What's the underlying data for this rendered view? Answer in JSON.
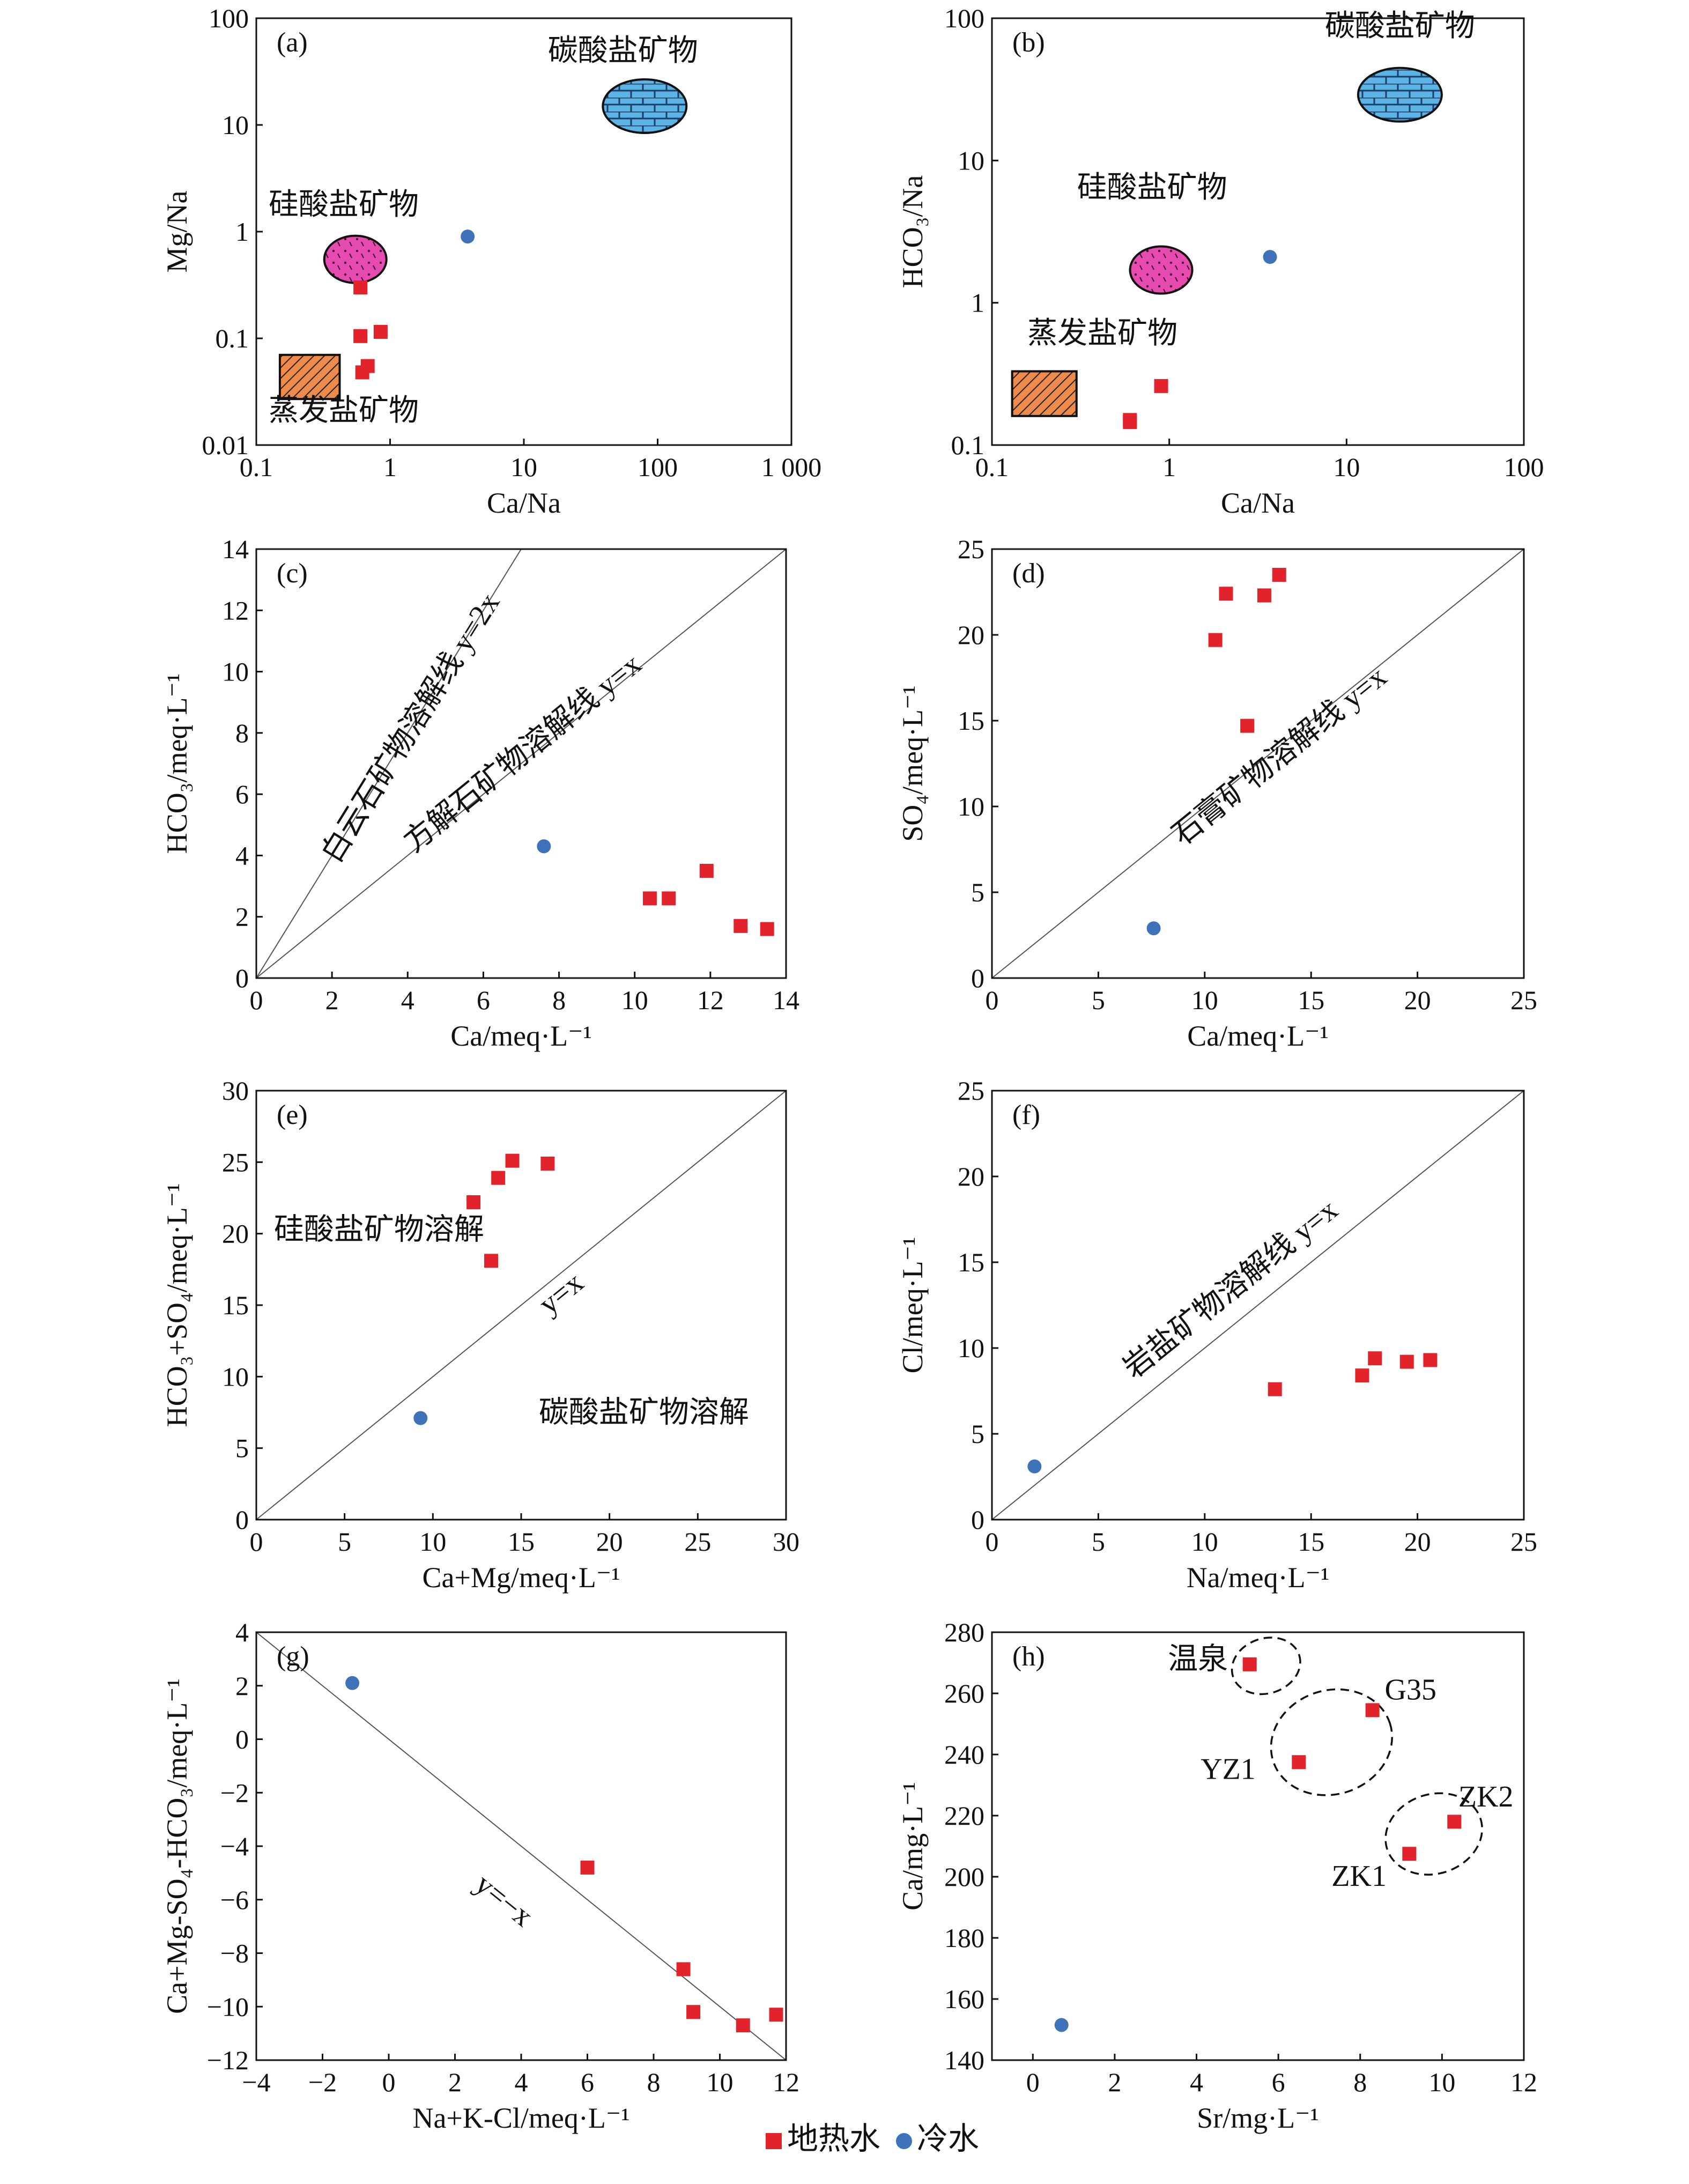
{
  "legend": {
    "items": [
      {
        "label": "地热水",
        "color": "#e3232b",
        "marker": "square"
      },
      {
        "label": "冷水",
        "color": "#3e73b9",
        "marker": "circle"
      }
    ]
  },
  "chart_data": [
    {
      "id": "a",
      "type": "scatter",
      "title": "(a)",
      "xlabel": "Ca/Na",
      "ylabel": "Mg/Na",
      "xscale": "log",
      "yscale": "log",
      "xlim": [
        0.1,
        1000
      ],
      "ylim": [
        0.01,
        100
      ],
      "xticks": [
        0.1,
        1,
        10,
        100,
        1000
      ],
      "xticklabels": [
        "0.1",
        "1",
        "10",
        "100",
        "1 000"
      ],
      "yticks": [
        0.01,
        0.1,
        1,
        10,
        100
      ],
      "yticklabels": [
        "0.01",
        "0.1",
        "1",
        "10",
        "100"
      ],
      "series": [
        {
          "name": "地热水",
          "marker": "square",
          "points": [
            [
              0.6,
              0.3
            ],
            [
              0.6,
              0.105
            ],
            [
              0.85,
              0.115
            ],
            [
              0.62,
              0.048
            ],
            [
              0.68,
              0.055
            ]
          ]
        },
        {
          "name": "冷水",
          "marker": "circle",
          "points": [
            [
              3.8,
              0.9
            ]
          ]
        }
      ],
      "regions": [
        {
          "label": "碳酸盐矿物",
          "kind": "ellipse",
          "fill": "#5bb3e6",
          "pattern": "brick",
          "center": [
            80,
            15
          ],
          "label_at": [
            55,
            40
          ]
        },
        {
          "label": "硅酸盐矿物",
          "kind": "ellipse",
          "fill": "#e84bb0",
          "pattern": "dots",
          "center": [
            0.55,
            0.55
          ],
          "label_at": [
            0.45,
            1.45
          ]
        },
        {
          "label": "蒸发盐矿物",
          "kind": "rect",
          "fill": "#ee8a4a",
          "pattern": "hatch",
          "x_range": [
            0.15,
            0.42
          ],
          "y_range": [
            0.027,
            0.07
          ],
          "label_at": [
            0.45,
            0.017
          ]
        }
      ]
    },
    {
      "id": "b",
      "type": "scatter",
      "title": "(b)",
      "xlabel": "Ca/Na",
      "ylabel": "HCO₃/Na",
      "xscale": "log",
      "yscale": "log",
      "xlim": [
        0.1,
        100
      ],
      "ylim": [
        0.1,
        100
      ],
      "xticks": [
        0.1,
        1,
        10,
        100
      ],
      "xticklabels": [
        "0.1",
        "1",
        "10",
        "100"
      ],
      "yticks": [
        0.1,
        1,
        10,
        100
      ],
      "yticklabels": [
        "0.1",
        "1",
        "10",
        "100"
      ],
      "series": [
        {
          "name": "地热水",
          "marker": "square",
          "points": [
            [
              0.6,
              0.145
            ],
            [
              0.6,
              0.15
            ],
            [
              0.9,
              0.26
            ]
          ]
        },
        {
          "name": "冷水",
          "marker": "circle",
          "points": [
            [
              3.7,
              2.1
            ]
          ]
        }
      ],
      "regions": [
        {
          "label": "碳酸盐矿物",
          "kind": "ellipse",
          "fill": "#5bb3e6",
          "pattern": "brick",
          "center": [
            20,
            29
          ],
          "label_at": [
            20,
            75
          ]
        },
        {
          "label": "硅酸盐矿物",
          "kind": "ellipse",
          "fill": "#e84bb0",
          "pattern": "dots",
          "center": [
            0.9,
            1.7
          ],
          "label_at": [
            0.8,
            5.5
          ]
        },
        {
          "label": "蒸发盐矿物",
          "kind": "rect",
          "fill": "#ee8a4a",
          "pattern": "hatch",
          "x_range": [
            0.13,
            0.3
          ],
          "y_range": [
            0.16,
            0.33
          ],
          "label_at": [
            0.42,
            0.52
          ]
        }
      ]
    },
    {
      "id": "c",
      "type": "scatter",
      "title": "(c)",
      "xlabel": "Ca/meq·L⁻¹",
      "ylabel": "HCO₃/meq·L⁻¹",
      "xlim": [
        0,
        14
      ],
      "ylim": [
        0,
        14
      ],
      "xticks": [
        0,
        2,
        4,
        6,
        8,
        10,
        12,
        14
      ],
      "yticks": [
        0,
        2,
        4,
        6,
        8,
        10,
        12,
        14
      ],
      "series": [
        {
          "name": "地热水",
          "marker": "square",
          "points": [
            [
              10.4,
              2.6
            ],
            [
              10.9,
              2.6
            ],
            [
              11.9,
              3.5
            ],
            [
              12.8,
              1.7
            ],
            [
              13.5,
              1.6
            ]
          ]
        },
        {
          "name": "冷水",
          "marker": "circle",
          "points": [
            [
              7.6,
              4.3
            ]
          ]
        }
      ],
      "lines": [
        {
          "slope": 2,
          "label": "白云石矿物溶解线 y=2x",
          "label_at": [
            4.3,
            8.0
          ]
        },
        {
          "slope": 1,
          "label": "方解石矿物溶解线 y=x",
          "label_at": [
            7.2,
            7.1
          ]
        }
      ]
    },
    {
      "id": "d",
      "type": "scatter",
      "title": "(d)",
      "xlabel": "Ca/meq·L⁻¹",
      "ylabel": "SO₄/meq·L⁻¹",
      "xlim": [
        0,
        25
      ],
      "ylim": [
        0,
        25
      ],
      "xticks": [
        0,
        5,
        10,
        15,
        20,
        25
      ],
      "yticks": [
        0,
        5,
        10,
        15,
        20,
        25
      ],
      "series": [
        {
          "name": "地热水",
          "marker": "square",
          "points": [
            [
              10.5,
              19.7
            ],
            [
              11.0,
              22.4
            ],
            [
              12.0,
              14.7
            ],
            [
              12.8,
              22.3
            ],
            [
              13.5,
              23.5
            ]
          ]
        },
        {
          "name": "冷水",
          "marker": "circle",
          "points": [
            [
              7.6,
              2.9
            ]
          ]
        }
      ],
      "lines": [
        {
          "slope": 1,
          "label": "石膏矿物溶解线 y=x",
          "label_at": [
            13.8,
            12.5
          ]
        }
      ]
    },
    {
      "id": "e",
      "type": "scatter",
      "title": "(e)",
      "xlabel": "Ca+Mg/meq·L⁻¹",
      "ylabel": "HCO₃+SO₄/meq·L⁻¹",
      "xlim": [
        0,
        30
      ],
      "ylim": [
        0,
        30
      ],
      "xticks": [
        0,
        5,
        10,
        15,
        20,
        25,
        30
      ],
      "yticks": [
        0,
        5,
        10,
        15,
        20,
        25,
        30
      ],
      "series": [
        {
          "name": "地热水",
          "marker": "square",
          "points": [
            [
              12.3,
              22.2
            ],
            [
              13.3,
              18.1
            ],
            [
              13.7,
              23.9
            ],
            [
              14.5,
              25.1
            ],
            [
              16.5,
              24.9
            ]
          ]
        },
        {
          "name": "冷水",
          "marker": "circle",
          "points": [
            [
              9.3,
              7.1
            ]
          ]
        }
      ],
      "lines": [
        {
          "slope": 1,
          "label": "y=x",
          "label_at": [
            17.6,
            15.3
          ]
        }
      ],
      "annotations": [
        {
          "text": "硅酸盐矿物溶解",
          "at": [
            1.0,
            19.6
          ]
        },
        {
          "text": "碳酸盐矿物溶解",
          "at": [
            16.0,
            6.8
          ]
        }
      ]
    },
    {
      "id": "f",
      "type": "scatter",
      "title": "(f)",
      "xlabel": "Na/meq·L⁻¹",
      "ylabel": "Cl/meq·L⁻¹",
      "xlim": [
        0,
        25
      ],
      "ylim": [
        0,
        25
      ],
      "xticks": [
        0,
        5,
        10,
        15,
        20,
        25
      ],
      "yticks": [
        0,
        5,
        10,
        15,
        20,
        25
      ],
      "series": [
        {
          "name": "地热水",
          "marker": "square",
          "points": [
            [
              13.3,
              7.6
            ],
            [
              17.4,
              8.4
            ],
            [
              18.0,
              9.4
            ],
            [
              19.5,
              9.2
            ],
            [
              20.6,
              9.3
            ]
          ]
        },
        {
          "name": "冷水",
          "marker": "circle",
          "points": [
            [
              2.0,
              3.1
            ]
          ]
        }
      ],
      "lines": [
        {
          "slope": 1,
          "label": "岩盐矿物溶解线 y=x",
          "label_at": [
            11.5,
            13.0
          ]
        }
      ]
    },
    {
      "id": "g",
      "type": "scatter",
      "title": "(g)",
      "xlabel": "Na+K-Cl/meq·L⁻¹",
      "ylabel": "Ca+Mg-SO₄-HCO₃/meq·L⁻¹",
      "xlim": [
        -4,
        12
      ],
      "ylim": [
        -12,
        4
      ],
      "xticks": [
        -4,
        -2,
        0,
        2,
        4,
        6,
        8,
        10,
        12
      ],
      "xticklabels": [
        "−4",
        "−2",
        "0",
        "2",
        "4",
        "6",
        "8",
        "10",
        "12"
      ],
      "yticks": [
        -12,
        -10,
        -8,
        -6,
        -4,
        -2,
        0,
        2,
        4
      ],
      "yticklabels": [
        "−12",
        "−10",
        "−8",
        "−6",
        "−4",
        "−2",
        "0",
        "2",
        "4"
      ],
      "series": [
        {
          "name": "地热水",
          "marker": "square",
          "points": [
            [
              6.0,
              -4.8
            ],
            [
              8.9,
              -8.6
            ],
            [
              9.2,
              -10.2
            ],
            [
              10.7,
              -10.7
            ],
            [
              11.7,
              -10.3
            ]
          ]
        },
        {
          "name": "冷水",
          "marker": "circle",
          "points": [
            [
              -1.1,
              2.1
            ]
          ]
        }
      ],
      "lines": [
        {
          "slope": -1,
          "label": "y=−x",
          "label_at": [
            3.3,
            -6.3
          ]
        }
      ]
    },
    {
      "id": "h",
      "type": "scatter",
      "title": "(h)",
      "xlabel": "Sr/mg·L⁻¹",
      "ylabel": "Ca/mg·L⁻¹",
      "xlim": [
        -1,
        12
      ],
      "ylim": [
        140,
        280
      ],
      "xticks": [
        0,
        2,
        4,
        6,
        8,
        10,
        12
      ],
      "yticks": [
        140,
        160,
        180,
        200,
        220,
        240,
        260,
        280
      ],
      "series": [
        {
          "name": "地热水",
          "marker": "square",
          "points": [
            [
              5.3,
              269.5
            ],
            [
              8.3,
              254.5
            ],
            [
              6.5,
              237.5
            ],
            [
              10.3,
              218.0
            ],
            [
              9.2,
              207.5
            ]
          ]
        },
        {
          "name": "冷水",
          "marker": "circle",
          "points": [
            [
              0.7,
              151.5
            ]
          ]
        }
      ],
      "point_labels": [
        {
          "text": "温泉",
          "at": [
            3.3,
            268.0
          ]
        },
        {
          "text": "G35",
          "at": [
            8.6,
            258.0
          ]
        },
        {
          "text": "YZ1",
          "at": [
            4.1,
            232.0
          ]
        },
        {
          "text": "ZK2",
          "at": [
            10.4,
            223.0
          ]
        },
        {
          "text": "ZK1",
          "at": [
            7.3,
            197.0
          ]
        }
      ],
      "groups": [
        {
          "center": [
            5.7,
            269.0
          ],
          "rx": 0.85,
          "ry": 9
        },
        {
          "center": [
            7.3,
            244.0
          ],
          "rx": 1.5,
          "ry": 17
        },
        {
          "center": [
            9.8,
            214.0
          ],
          "rx": 1.2,
          "ry": 13
        }
      ]
    }
  ]
}
